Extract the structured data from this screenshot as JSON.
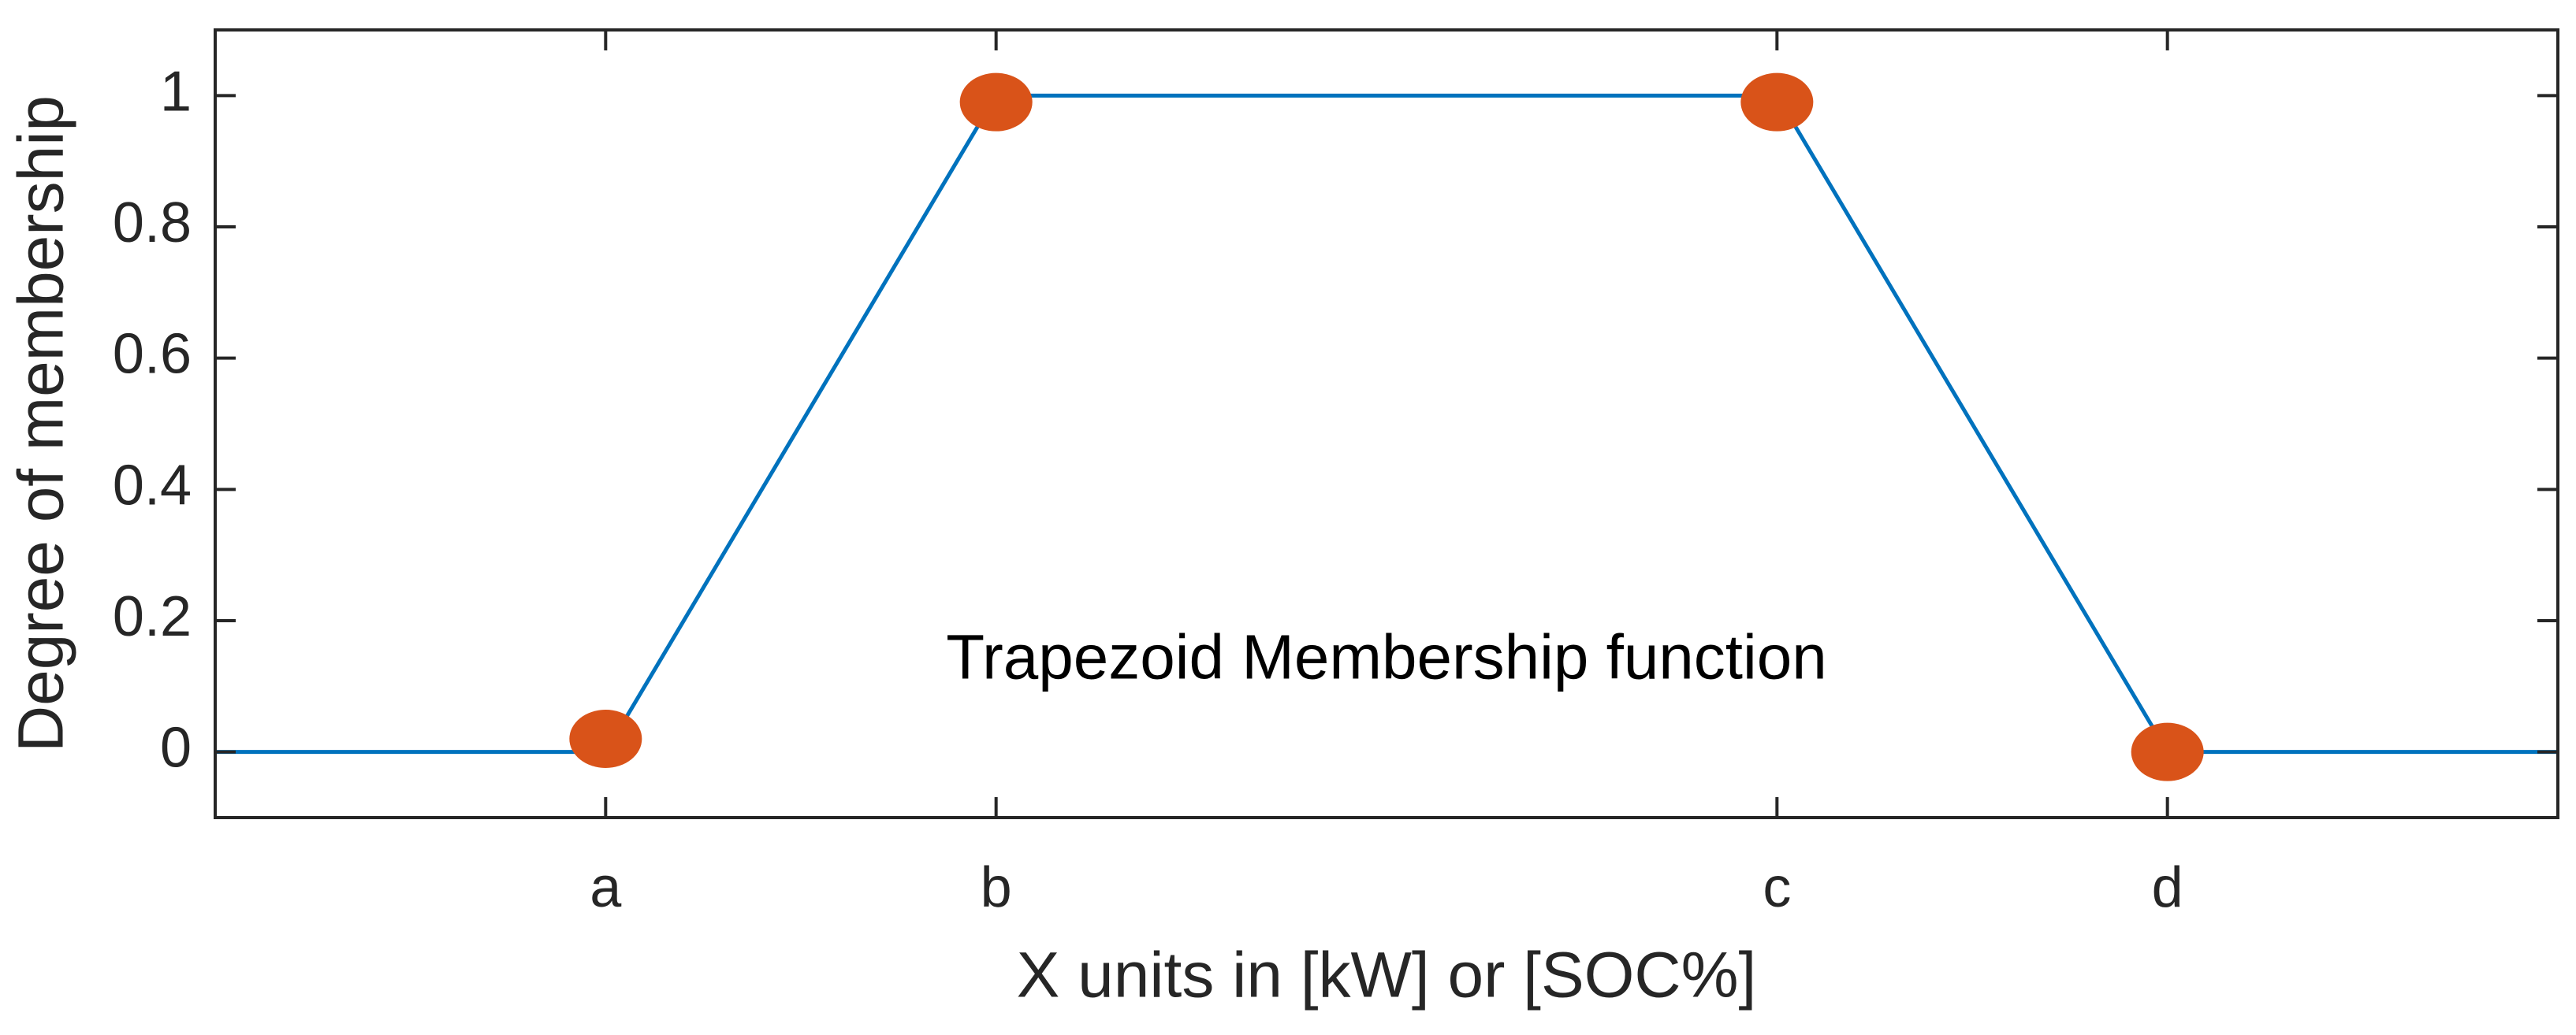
{
  "chart_data": {
    "type": "line",
    "annotation": "Trapezoid Membership function",
    "xlabel": "X units in [kW] or [SOC%]",
    "ylabel": "Degree of membership",
    "xlim": [
      0,
      6
    ],
    "xticks": [
      {
        "value": 1,
        "label": "a"
      },
      {
        "value": 2,
        "label": "b"
      },
      {
        "value": 4,
        "label": "c"
      },
      {
        "value": 5,
        "label": "d"
      }
    ],
    "ylim": [
      -0.1,
      1.1
    ],
    "yticks": [
      0,
      0.2,
      0.4,
      0.6,
      0.8,
      1
    ],
    "series": [
      {
        "type": "line",
        "color": "#0072bd",
        "x": [
          0,
          1,
          2,
          4,
          5,
          6
        ],
        "values": [
          0,
          0,
          1,
          1,
          0,
          0
        ]
      },
      {
        "type": "scatter",
        "color": "#d95319",
        "x": [
          1,
          2,
          4,
          5
        ],
        "values": [
          0.02,
          0.99,
          0.99,
          0
        ]
      }
    ]
  }
}
